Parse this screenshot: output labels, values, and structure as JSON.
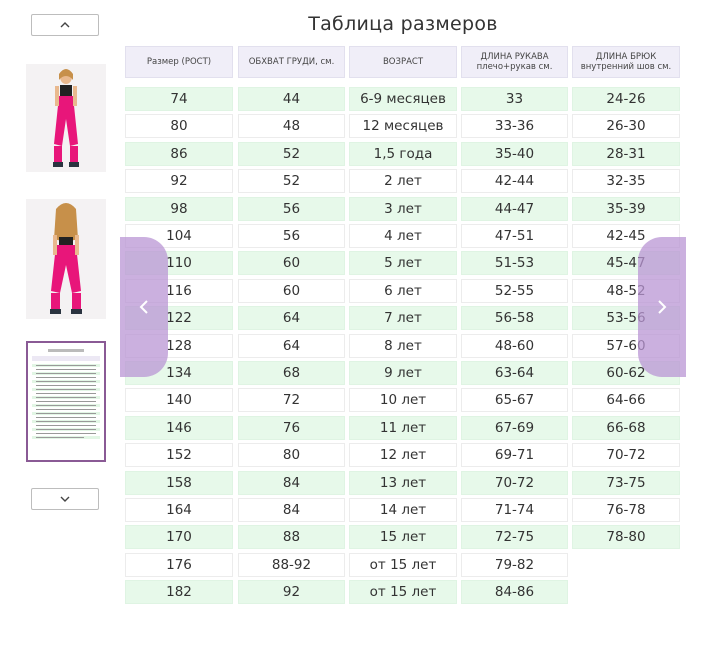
{
  "gallery": {
    "up_icon": "chevron-up-icon",
    "down_icon": "chevron-down-icon",
    "prev_icon": "chevron-left-icon",
    "next_icon": "chevron-right-icon"
  },
  "chart": {
    "title": "Таблица размеров",
    "headers": [
      [
        "Размер (РОСТ)"
      ],
      [
        "ОБХВАТ ГРУДИ, см."
      ],
      [
        "ВОЗРАСТ"
      ],
      [
        "ДЛИНА РУКАВА",
        "плечо+рукав см."
      ],
      [
        "ДЛИНА БРЮК",
        "внутренний шов см."
      ]
    ],
    "rows": [
      [
        "74",
        "44",
        "6-9 месяцев",
        "33",
        "24-26"
      ],
      [
        "80",
        "48",
        "12 месяцев",
        "33-36",
        "26-30"
      ],
      [
        "86",
        "52",
        "1,5 года",
        "35-40",
        "28-31"
      ],
      [
        "92",
        "52",
        "2 лет",
        "42-44",
        "32-35"
      ],
      [
        "98",
        "56",
        "3 лет",
        "44-47",
        "35-39"
      ],
      [
        "104",
        "56",
        "4 лет",
        "47-51",
        "42-45"
      ],
      [
        "110",
        "60",
        "5 лет",
        "51-53",
        "45-47"
      ],
      [
        "116",
        "60",
        "6 лет",
        "52-55",
        "48-52"
      ],
      [
        "122",
        "64",
        "7 лет",
        "56-58",
        "53-56"
      ],
      [
        "128",
        "64",
        "8 лет",
        "48-60",
        "57-60"
      ],
      [
        "134",
        "68",
        "9 лет",
        "63-64",
        "60-62"
      ],
      [
        "140",
        "72",
        "10 лет",
        "65-67",
        "64-66"
      ],
      [
        "146",
        "76",
        "11 лет",
        "67-69",
        "66-68"
      ],
      [
        "152",
        "80",
        "12 лет",
        "69-71",
        "70-72"
      ],
      [
        "158",
        "84",
        "13 лет",
        "70-72",
        "73-75"
      ],
      [
        "164",
        "84",
        "14 лет",
        "71-74",
        "76-78"
      ],
      [
        "170",
        "88",
        "15 лет",
        "72-75",
        "78-80"
      ],
      [
        "176",
        "88-92",
        "от 15 лет",
        "79-82",
        ""
      ],
      [
        "182",
        "92",
        "от 15 лет",
        "84-86",
        ""
      ]
    ]
  },
  "colors": {
    "green_row": "#e7f9ea",
    "header_bg": "#f0eef8",
    "nav_overlay": "#ba96d4",
    "selected_border": "#8a5a95",
    "pants_pink": "#e8167a"
  }
}
